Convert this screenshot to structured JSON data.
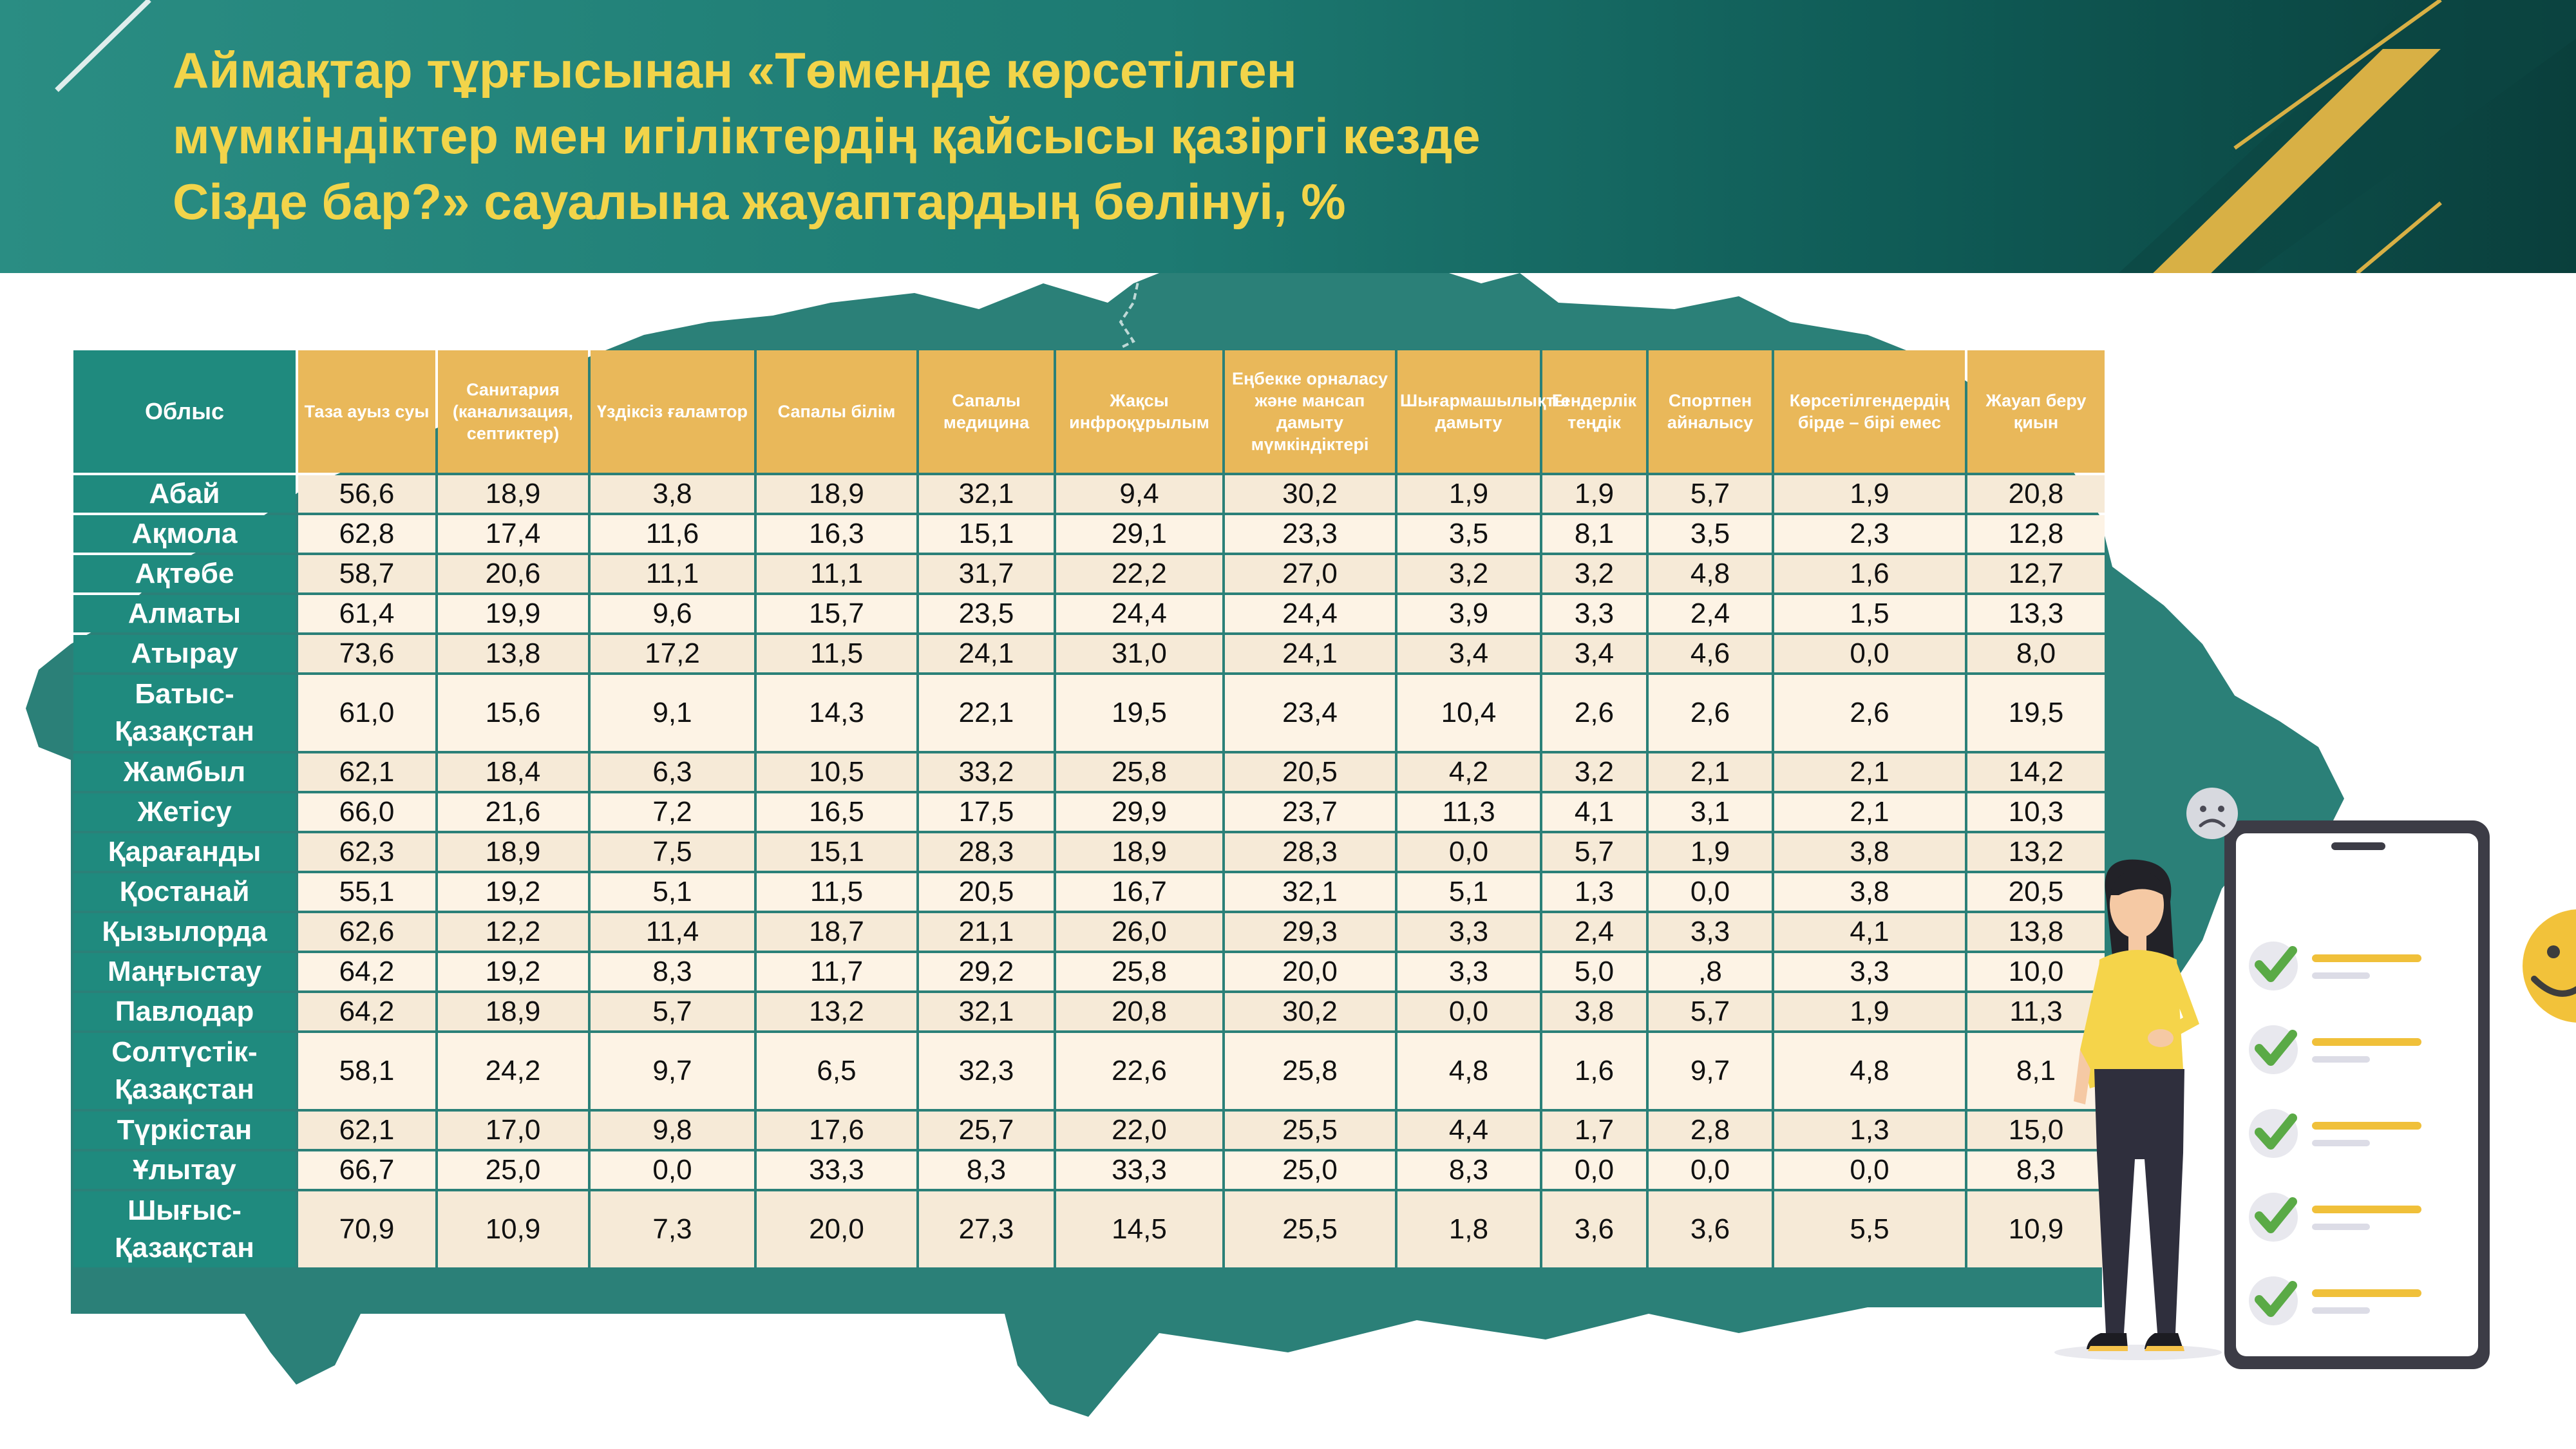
{
  "header": {
    "title_lines": [
      "Аймақтар тұрғысынан «Төменде көрсетілген",
      "мүмкіндіктер мен игіліктердің қайсысы қазіргі кезде",
      "Сізде бар?» сауалына жауаптардың бөлінуі, %"
    ]
  },
  "table": {
    "columns": [
      "Облыс",
      "Таза ауыз суы",
      "Санитария (канализация, септиктер)",
      "Үздіксіз ғаламтор",
      "Сапалы білім",
      "Сапалы медицина",
      "Жақсы инфроқұрылым",
      "Еңбекке орналасу және мансап дамыту мүмкіндіктері",
      "Шығармашылықты дамыту",
      "Гендерлік теңдік",
      "Спортпен айналысу",
      "Көрсетілгендердің бірде – бірі емес",
      "Жауап беру қиын"
    ],
    "rows": [
      {
        "region": "Абай",
        "values": [
          "56,6",
          "18,9",
          "3,8",
          "18,9",
          "32,1",
          "9,4",
          "30,2",
          "1,9",
          "1,9",
          "5,7",
          "1,9",
          "20,8"
        ]
      },
      {
        "region": "Ақмола",
        "values": [
          "62,8",
          "17,4",
          "11,6",
          "16,3",
          "15,1",
          "29,1",
          "23,3",
          "3,5",
          "8,1",
          "3,5",
          "2,3",
          "12,8"
        ]
      },
      {
        "region": "Ақтөбе",
        "values": [
          "58,7",
          "20,6",
          "11,1",
          "11,1",
          "31,7",
          "22,2",
          "27,0",
          "3,2",
          "3,2",
          "4,8",
          "1,6",
          "12,7"
        ]
      },
      {
        "region": "Алматы",
        "values": [
          "61,4",
          "19,9",
          "9,6",
          "15,7",
          "23,5",
          "24,4",
          "24,4",
          "3,9",
          "3,3",
          "2,4",
          "1,5",
          "13,3"
        ]
      },
      {
        "region": "Атырау",
        "values": [
          "73,6",
          "13,8",
          "17,2",
          "11,5",
          "24,1",
          "31,0",
          "24,1",
          "3,4",
          "3,4",
          "4,6",
          "0,0",
          "8,0"
        ]
      },
      {
        "region": "Батыс-Қазақстан",
        "values": [
          "61,0",
          "15,6",
          "9,1",
          "14,3",
          "22,1",
          "19,5",
          "23,4",
          "10,4",
          "2,6",
          "2,6",
          "2,6",
          "19,5"
        ]
      },
      {
        "region": "Жамбыл",
        "values": [
          "62,1",
          "18,4",
          "6,3",
          "10,5",
          "33,2",
          "25,8",
          "20,5",
          "4,2",
          "3,2",
          "2,1",
          "2,1",
          "14,2"
        ]
      },
      {
        "region": "Жетісу",
        "values": [
          "66,0",
          "21,6",
          "7,2",
          "16,5",
          "17,5",
          "29,9",
          "23,7",
          "11,3",
          "4,1",
          "3,1",
          "2,1",
          "10,3"
        ]
      },
      {
        "region": "Қарағанды",
        "values": [
          "62,3",
          "18,9",
          "7,5",
          "15,1",
          "28,3",
          "18,9",
          "28,3",
          "0,0",
          "5,7",
          "1,9",
          "3,8",
          "13,2"
        ]
      },
      {
        "region": "Қостанай",
        "values": [
          "55,1",
          "19,2",
          "5,1",
          "11,5",
          "20,5",
          "16,7",
          "32,1",
          "5,1",
          "1,3",
          "0,0",
          "3,8",
          "20,5"
        ]
      },
      {
        "region": "Қызылорда",
        "values": [
          "62,6",
          "12,2",
          "11,4",
          "18,7",
          "21,1",
          "26,0",
          "29,3",
          "3,3",
          "2,4",
          "3,3",
          "4,1",
          "13,8"
        ]
      },
      {
        "region": "Маңғыстау",
        "values": [
          "64,2",
          "19,2",
          "8,3",
          "11,7",
          "29,2",
          "25,8",
          "20,0",
          "3,3",
          "5,0",
          ",8",
          "3,3",
          "10,0"
        ]
      },
      {
        "region": "Павлодар",
        "values": [
          "64,2",
          "18,9",
          "5,7",
          "13,2",
          "32,1",
          "20,8",
          "30,2",
          "0,0",
          "3,8",
          "5,7",
          "1,9",
          "11,3"
        ]
      },
      {
        "region": "Солтүстік-Қазақстан",
        "values": [
          "58,1",
          "24,2",
          "9,7",
          "6,5",
          "32,3",
          "22,6",
          "25,8",
          "4,8",
          "1,6",
          "9,7",
          "4,8",
          "8,1"
        ]
      },
      {
        "region": "Түркістан",
        "values": [
          "62,1",
          "17,0",
          "9,8",
          "17,6",
          "25,7",
          "22,0",
          "25,5",
          "4,4",
          "1,7",
          "2,8",
          "1,3",
          "15,0"
        ]
      },
      {
        "region": "Ұлытау",
        "values": [
          "66,7",
          "25,0",
          "0,0",
          "33,3",
          "8,3",
          "33,3",
          "25,0",
          "8,3",
          "0,0",
          "0,0",
          "0,0",
          "8,3"
        ]
      },
      {
        "region": "Шығыс-Қазақстан",
        "values": [
          "70,9",
          "10,9",
          "7,3",
          "20,0",
          "27,3",
          "14,5",
          "25,5",
          "1,8",
          "3,6",
          "3,6",
          "5,5",
          "10,9"
        ]
      }
    ]
  },
  "colors": {
    "header_teal": "#1d7a72",
    "title_gold": "#f2d44a",
    "region_teal": "#1f8a7e",
    "header_orange": "#e9b85a",
    "row_odd": "#f6ead7",
    "row_even": "#fdf3e5",
    "map_teal": "#2b8078",
    "check_green": "#5aaa46"
  },
  "icons": {
    "map": "kazakhstan-map-silhouette",
    "person": "woman-illustration",
    "phone": "phone-checklist-icon",
    "sad": "sad-face-icon",
    "smile": "smile-face-icon"
  }
}
